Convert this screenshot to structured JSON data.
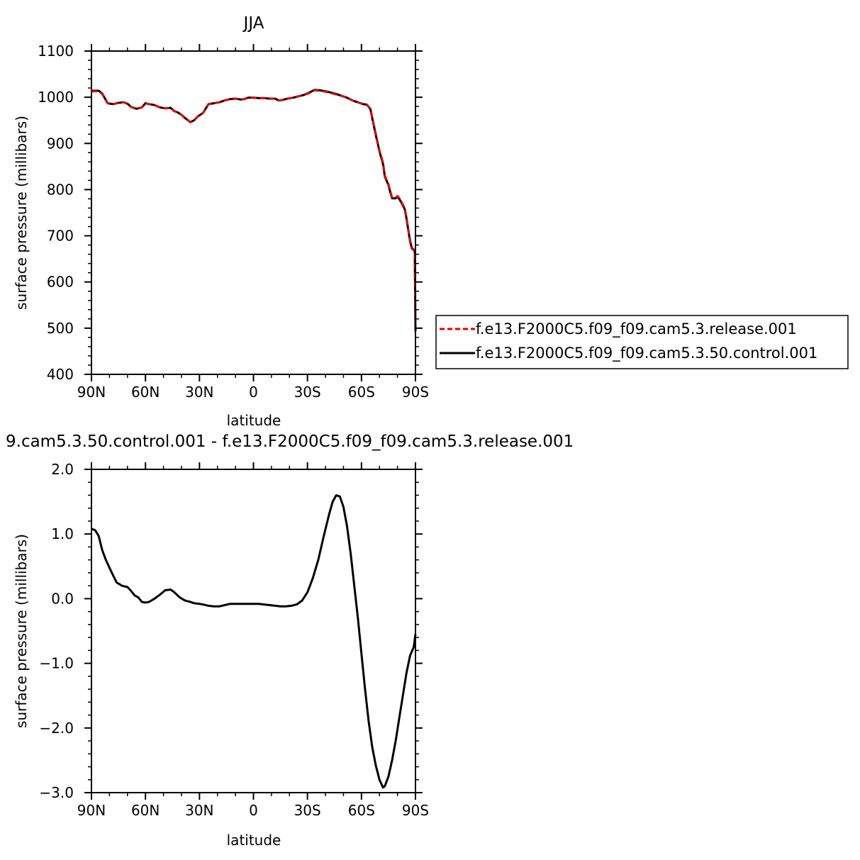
{
  "chart_data": [
    {
      "type": "line",
      "title": "JJA",
      "xlabel": "latitude",
      "ylabel": "surface pressure (millibars)",
      "x_tick_labels": [
        "90N",
        "60N",
        "30N",
        "0",
        "30S",
        "60S",
        "90S"
      ],
      "x_tick_values": [
        90,
        60,
        30,
        0,
        -30,
        -60,
        -90
      ],
      "xlim": [
        90,
        -90
      ],
      "ylim": [
        400,
        1100
      ],
      "y_tick_labels": [
        "400",
        "500",
        "600",
        "700",
        "800",
        "900",
        "1000",
        "1100"
      ],
      "y_tick_values": [
        400,
        500,
        600,
        700,
        800,
        900,
        1000,
        1100
      ],
      "grid": false,
      "legend_position": "right",
      "series": [
        {
          "name": "f.e13.F2000C5.f09_f09.cam5.3.release.001",
          "color": "#e60000",
          "dash": "dashed",
          "points": [
            [
              90,
              1013
            ],
            [
              86,
              1013
            ],
            [
              84,
              1007
            ],
            [
              81,
              987
            ],
            [
              78,
              985
            ],
            [
              75,
              988
            ],
            [
              72,
              989
            ],
            [
              70,
              986
            ],
            [
              68,
              979
            ],
            [
              65,
              975
            ],
            [
              62,
              978
            ],
            [
              60,
              987
            ],
            [
              58,
              985
            ],
            [
              55,
              983
            ],
            [
              52,
              978
            ],
            [
              49,
              976
            ],
            [
              46,
              977
            ],
            [
              44,
              970
            ],
            [
              42,
              967
            ],
            [
              40,
              962
            ],
            [
              38,
              955
            ],
            [
              35,
              946
            ],
            [
              33,
              950
            ],
            [
              31,
              958
            ],
            [
              28,
              966
            ],
            [
              25,
              985
            ],
            [
              22,
              987
            ],
            [
              19,
              989
            ],
            [
              16,
              993
            ],
            [
              13,
              996
            ],
            [
              10,
              997
            ],
            [
              7,
              995
            ],
            [
              5,
              996
            ],
            [
              3,
              999
            ],
            [
              0,
              999
            ],
            [
              -3,
              998
            ],
            [
              -6,
              998
            ],
            [
              -9,
              997
            ],
            [
              -12,
              997
            ],
            [
              -14,
              993
            ],
            [
              -16,
              994
            ],
            [
              -19,
              997
            ],
            [
              -22,
              999
            ],
            [
              -25,
              1002
            ],
            [
              -28,
              1005
            ],
            [
              -31,
              1009
            ],
            [
              -34,
              1015
            ],
            [
              -37,
              1014
            ],
            [
              -40,
              1012
            ],
            [
              -43,
              1009
            ],
            [
              -46,
              1006
            ],
            [
              -49,
              1003
            ],
            [
              -52,
              999
            ],
            [
              -55,
              993
            ],
            [
              -58,
              989
            ],
            [
              -61,
              985
            ],
            [
              -63,
              984
            ],
            [
              -65,
              975
            ],
            [
              -66,
              955
            ],
            [
              -68,
              920
            ],
            [
              -70,
              885
            ],
            [
              -72,
              858
            ],
            [
              -73,
              830
            ],
            [
              -75,
              812
            ],
            [
              -76,
              796
            ],
            [
              -77,
              783
            ],
            [
              -79,
              783
            ],
            [
              -80,
              786
            ],
            [
              -81,
              782
            ],
            [
              -82,
              775
            ],
            [
              -84,
              760
            ],
            [
              -85,
              740
            ],
            [
              -86,
              715
            ],
            [
              -87,
              690
            ],
            [
              -88,
              675
            ],
            [
              -89,
              670
            ],
            [
              -89.6,
              670
            ],
            [
              -90,
              500
            ]
          ]
        },
        {
          "name": "f.e13.F2000C5.f09_f09.cam5.3.50.control.001",
          "color": "#000000",
          "dash": "solid",
          "points": [
            [
              90,
              1014
            ],
            [
              86,
              1014
            ],
            [
              84,
              1008
            ],
            [
              81,
              987
            ],
            [
              78,
              985
            ],
            [
              75,
              988
            ],
            [
              72,
              989
            ],
            [
              70,
              986
            ],
            [
              68,
              979
            ],
            [
              65,
              975
            ],
            [
              62,
              978
            ],
            [
              60,
              987
            ],
            [
              58,
              985
            ],
            [
              55,
              983
            ],
            [
              52,
              978
            ],
            [
              49,
              976
            ],
            [
              46,
              977
            ],
            [
              44,
              970
            ],
            [
              42,
              967
            ],
            [
              40,
              962
            ],
            [
              38,
              955
            ],
            [
              35,
              946
            ],
            [
              33,
              950
            ],
            [
              31,
              958
            ],
            [
              28,
              966
            ],
            [
              25,
              985
            ],
            [
              22,
              987
            ],
            [
              19,
              989
            ],
            [
              16,
              993
            ],
            [
              13,
              996
            ],
            [
              10,
              997
            ],
            [
              7,
              995
            ],
            [
              5,
              996
            ],
            [
              3,
              999
            ],
            [
              0,
              999
            ],
            [
              -3,
              998
            ],
            [
              -6,
              998
            ],
            [
              -9,
              997
            ],
            [
              -12,
              997
            ],
            [
              -14,
              993
            ],
            [
              -16,
              994
            ],
            [
              -19,
              997
            ],
            [
              -22,
              999
            ],
            [
              -25,
              1002
            ],
            [
              -28,
              1005
            ],
            [
              -31,
              1010
            ],
            [
              -34,
              1016
            ],
            [
              -37,
              1015
            ],
            [
              -40,
              1013
            ],
            [
              -43,
              1010
            ],
            [
              -46,
              1007
            ],
            [
              -49,
              1003
            ],
            [
              -52,
              999
            ],
            [
              -55,
              993
            ],
            [
              -58,
              989
            ],
            [
              -61,
              985
            ],
            [
              -63,
              984
            ],
            [
              -65,
              974
            ],
            [
              -66,
              954
            ],
            [
              -68,
              918
            ],
            [
              -70,
              883
            ],
            [
              -72,
              855
            ],
            [
              -73,
              828
            ],
            [
              -75,
              810
            ],
            [
              -76,
              794
            ],
            [
              -77,
              781
            ],
            [
              -79,
              781
            ],
            [
              -80,
              784
            ],
            [
              -81,
              780
            ],
            [
              -82,
              773
            ],
            [
              -84,
              758
            ],
            [
              -85,
              738
            ],
            [
              -86,
              713
            ],
            [
              -87,
              688
            ],
            [
              -88,
              673
            ],
            [
              -89,
              669
            ],
            [
              -89.6,
              669
            ],
            [
              -90,
              493
            ]
          ]
        }
      ]
    },
    {
      "type": "line",
      "title": "9.cam5.3.50.control.001 - f.e13.F2000C5.f09_f09.cam5.3.release.001",
      "xlabel": "latitude",
      "ylabel": "surface pressure (millibars)",
      "x_tick_labels": [
        "90N",
        "60N",
        "30N",
        "0",
        "30S",
        "60S",
        "90S"
      ],
      "x_tick_values": [
        90,
        60,
        30,
        0,
        -30,
        -60,
        -90
      ],
      "xlim": [
        90,
        -90
      ],
      "ylim": [
        -3.0,
        2.0
      ],
      "y_tick_labels": [
        "−3.0",
        "−2.0",
        "−1.0",
        "0.0",
        "1.0",
        "2.0"
      ],
      "y_tick_values": [
        -3,
        -2,
        -1,
        0,
        1,
        2
      ],
      "grid": false,
      "series": [
        {
          "color": "#000000",
          "dash": "solid",
          "points": [
            [
              90,
              1.08
            ],
            [
              88,
              1.06
            ],
            [
              86,
              0.97
            ],
            [
              84,
              0.75
            ],
            [
              82,
              0.6
            ],
            [
              79,
              0.42
            ],
            [
              76,
              0.25
            ],
            [
              73,
              0.2
            ],
            [
              70,
              0.18
            ],
            [
              68,
              0.12
            ],
            [
              66,
              0.05
            ],
            [
              64,
              0.02
            ],
            [
              62,
              -0.05
            ],
            [
              60,
              -0.06
            ],
            [
              58,
              -0.05
            ],
            [
              55,
              0.0
            ],
            [
              52,
              0.06
            ],
            [
              49,
              0.13
            ],
            [
              46,
              0.14
            ],
            [
              44,
              0.1
            ],
            [
              41,
              0.02
            ],
            [
              38,
              -0.03
            ],
            [
              35,
              -0.05
            ],
            [
              33,
              -0.07
            ],
            [
              30,
              -0.08
            ],
            [
              28,
              -0.09
            ],
            [
              25,
              -0.11
            ],
            [
              22,
              -0.12
            ],
            [
              19,
              -0.12
            ],
            [
              16,
              -0.1
            ],
            [
              13,
              -0.08
            ],
            [
              9,
              -0.08
            ],
            [
              5,
              -0.08
            ],
            [
              1,
              -0.08
            ],
            [
              -3,
              -0.08
            ],
            [
              -6,
              -0.09
            ],
            [
              -9,
              -0.1
            ],
            [
              -12,
              -0.11
            ],
            [
              -15,
              -0.12
            ],
            [
              -18,
              -0.12
            ],
            [
              -21,
              -0.11
            ],
            [
              -24,
              -0.09
            ],
            [
              -27,
              -0.03
            ],
            [
              -30,
              0.1
            ],
            [
              -33,
              0.32
            ],
            [
              -36,
              0.6
            ],
            [
              -39,
              0.96
            ],
            [
              -42,
              1.3
            ],
            [
              -44,
              1.5
            ],
            [
              -46,
              1.6
            ],
            [
              -48,
              1.58
            ],
            [
              -50,
              1.42
            ],
            [
              -52,
              1.12
            ],
            [
              -54,
              0.7
            ],
            [
              -56,
              0.2
            ],
            [
              -58,
              -0.3
            ],
            [
              -60,
              -0.85
            ],
            [
              -62,
              -1.4
            ],
            [
              -64,
              -1.9
            ],
            [
              -66,
              -2.3
            ],
            [
              -68,
              -2.58
            ],
            [
              -70,
              -2.8
            ],
            [
              -72,
              -2.92
            ],
            [
              -73,
              -2.9
            ],
            [
              -75,
              -2.75
            ],
            [
              -77,
              -2.5
            ],
            [
              -79,
              -2.2
            ],
            [
              -81,
              -1.85
            ],
            [
              -83,
              -1.5
            ],
            [
              -85,
              -1.15
            ],
            [
              -87,
              -0.88
            ],
            [
              -89,
              -0.75
            ],
            [
              -90,
              -0.55
            ]
          ]
        }
      ]
    }
  ]
}
